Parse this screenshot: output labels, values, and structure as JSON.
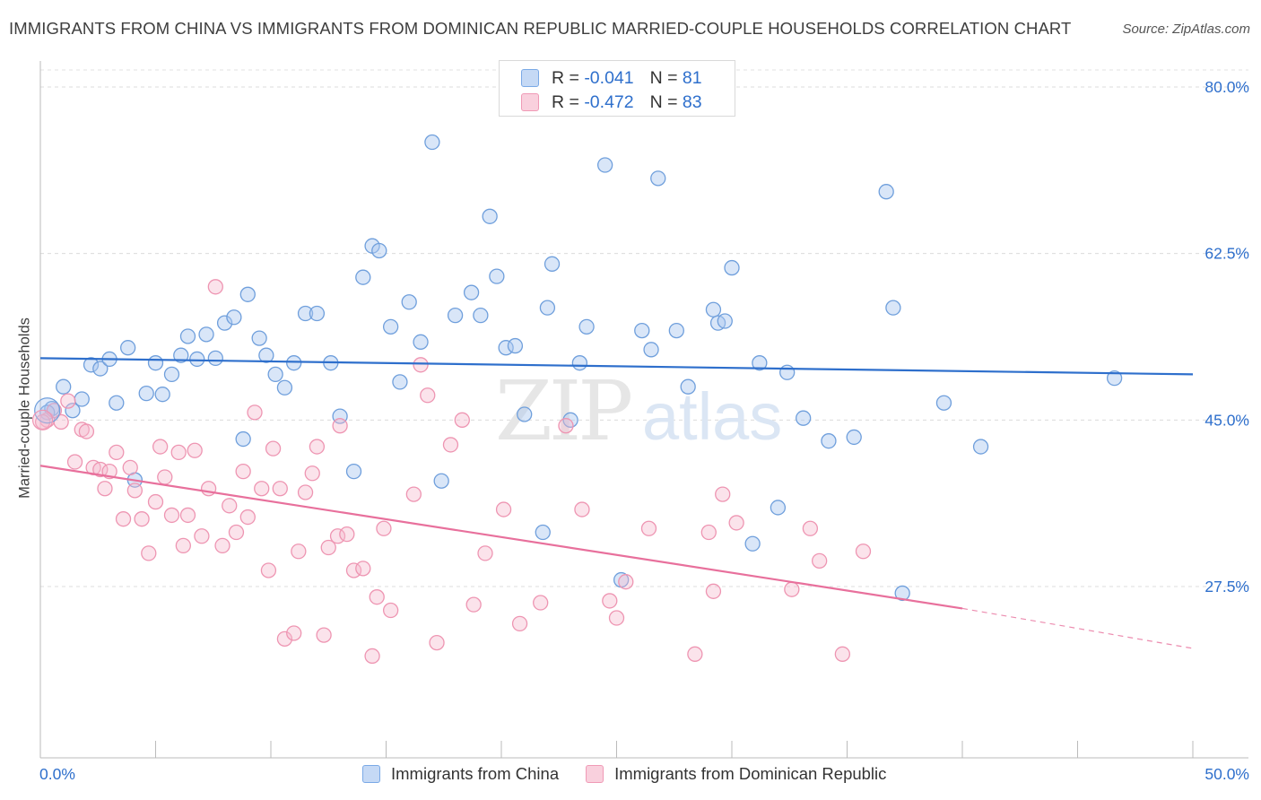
{
  "chart_data": {
    "type": "scatter",
    "title": "IMMIGRANTS FROM CHINA VS IMMIGRANTS FROM DOMINICAN REPUBLIC MARRIED-COUPLE HOUSEHOLDS CORRELATION CHART",
    "source": "Source: ZipAtlas.com",
    "xlabel": "",
    "ylabel": "Married-couple Households",
    "xlim": [
      0,
      50
    ],
    "ylim": [
      12,
      83
    ],
    "x_tick_labels": [
      "0.0%",
      "50.0%"
    ],
    "y_ticks": [
      27.5,
      45.0,
      62.5,
      80.0
    ],
    "y_tick_labels": [
      "27.5%",
      "45.0%",
      "62.5%",
      "80.0%"
    ],
    "watermark": "ZIPatlas",
    "legend": {
      "r_label": "R =",
      "n_label": "N =",
      "entries": [
        {
          "r": "-0.041",
          "n": "81",
          "color": "#7aa9e6",
          "fill": "#c5d9f5"
        },
        {
          "r": "-0.472",
          "n": "83",
          "color": "#f09ab6",
          "fill": "#f9d0dd"
        }
      ]
    },
    "series": [
      {
        "name": "Immigrants from China",
        "color": "#6f9fdc",
        "fill": "rgba(170,199,240,0.45)",
        "line_color": "#2e6fcc",
        "trend": {
          "x0": 0,
          "y0": 51.5,
          "x1": 50,
          "y1": 49.8
        },
        "points": [
          [
            0.5,
            46.2
          ],
          [
            1.0,
            48.5
          ],
          [
            1.4,
            46.0
          ],
          [
            1.8,
            47.2
          ],
          [
            2.2,
            50.8
          ],
          [
            2.6,
            50.4
          ],
          [
            3.0,
            51.4
          ],
          [
            3.3,
            46.8
          ],
          [
            3.8,
            52.6
          ],
          [
            4.1,
            38.7
          ],
          [
            4.6,
            47.8
          ],
          [
            5.0,
            51.0
          ],
          [
            5.3,
            47.7
          ],
          [
            5.7,
            49.8
          ],
          [
            6.1,
            51.8
          ],
          [
            6.4,
            53.8
          ],
          [
            6.8,
            51.4
          ],
          [
            7.2,
            54.0
          ],
          [
            7.6,
            51.5
          ],
          [
            8.0,
            55.2
          ],
          [
            8.4,
            55.8
          ],
          [
            8.8,
            43.0
          ],
          [
            9.0,
            58.2
          ],
          [
            9.5,
            53.6
          ],
          [
            9.8,
            51.8
          ],
          [
            10.2,
            49.8
          ],
          [
            10.6,
            48.4
          ],
          [
            11.0,
            51.0
          ],
          [
            11.5,
            56.2
          ],
          [
            12.0,
            56.2
          ],
          [
            12.6,
            51.0
          ],
          [
            13.0,
            45.4
          ],
          [
            13.6,
            39.6
          ],
          [
            14.0,
            60.0
          ],
          [
            14.4,
            63.3
          ],
          [
            14.7,
            62.8
          ],
          [
            15.2,
            54.8
          ],
          [
            15.6,
            49.0
          ],
          [
            16.0,
            57.4
          ],
          [
            16.5,
            53.2
          ],
          [
            17.0,
            74.2
          ],
          [
            17.4,
            38.6
          ],
          [
            18.0,
            56.0
          ],
          [
            18.7,
            58.4
          ],
          [
            19.1,
            56.0
          ],
          [
            19.5,
            66.4
          ],
          [
            19.8,
            60.1
          ],
          [
            20.2,
            52.6
          ],
          [
            20.6,
            52.8
          ],
          [
            21.0,
            45.6
          ],
          [
            21.8,
            33.2
          ],
          [
            22.2,
            61.4
          ],
          [
            22.0,
            56.8
          ],
          [
            23.0,
            45.0
          ],
          [
            23.4,
            51.0
          ],
          [
            23.7,
            54.8
          ],
          [
            24.5,
            71.8
          ],
          [
            25.2,
            28.2
          ],
          [
            26.1,
            54.4
          ],
          [
            26.5,
            52.4
          ],
          [
            26.8,
            70.4
          ],
          [
            27.6,
            54.4
          ],
          [
            28.1,
            48.5
          ],
          [
            29.2,
            56.6
          ],
          [
            29.4,
            55.2
          ],
          [
            29.7,
            55.4
          ],
          [
            30.0,
            61.0
          ],
          [
            30.9,
            32.0
          ],
          [
            31.2,
            51.0
          ],
          [
            32.0,
            35.8
          ],
          [
            32.4,
            50.0
          ],
          [
            33.1,
            45.2
          ],
          [
            34.2,
            42.8
          ],
          [
            35.3,
            43.2
          ],
          [
            36.7,
            69.0
          ],
          [
            37.0,
            56.8
          ],
          [
            37.4,
            26.8
          ],
          [
            39.2,
            46.8
          ],
          [
            40.8,
            42.2
          ],
          [
            46.6,
            49.4
          ],
          [
            0.3,
            45.8
          ]
        ]
      },
      {
        "name": "Immigrants from Dominican Republic",
        "color": "#ee95b2",
        "fill": "rgba(245,185,205,0.4)",
        "line_color": "#e8709c",
        "trend": {
          "x0": 0,
          "y0": 40.2,
          "x1": 40,
          "y1": 25.2
        },
        "trend_ext": {
          "x0": 40,
          "y0": 25.2,
          "x1": 50,
          "y1": 21.0
        },
        "points": [
          [
            0.3,
            45.0
          ],
          [
            0.6,
            46.0
          ],
          [
            0.9,
            44.8
          ],
          [
            1.2,
            47.0
          ],
          [
            1.5,
            40.6
          ],
          [
            1.8,
            44.0
          ],
          [
            2.0,
            43.8
          ],
          [
            2.3,
            40.0
          ],
          [
            2.6,
            39.8
          ],
          [
            2.8,
            37.8
          ],
          [
            3.0,
            39.6
          ],
          [
            3.3,
            41.6
          ],
          [
            3.6,
            34.6
          ],
          [
            3.9,
            40.0
          ],
          [
            4.1,
            37.6
          ],
          [
            4.4,
            34.6
          ],
          [
            4.7,
            31.0
          ],
          [
            5.0,
            36.4
          ],
          [
            5.2,
            42.2
          ],
          [
            5.4,
            39.0
          ],
          [
            5.7,
            35.0
          ],
          [
            6.0,
            41.6
          ],
          [
            6.2,
            31.8
          ],
          [
            6.4,
            35.0
          ],
          [
            6.7,
            41.8
          ],
          [
            7.0,
            32.8
          ],
          [
            7.3,
            37.8
          ],
          [
            7.6,
            59.0
          ],
          [
            7.9,
            31.8
          ],
          [
            8.2,
            36.0
          ],
          [
            8.5,
            33.2
          ],
          [
            8.8,
            39.6
          ],
          [
            9.0,
            34.8
          ],
          [
            9.3,
            45.8
          ],
          [
            9.6,
            37.8
          ],
          [
            9.9,
            29.2
          ],
          [
            10.1,
            42.0
          ],
          [
            10.4,
            37.8
          ],
          [
            10.6,
            22.0
          ],
          [
            11.0,
            22.6
          ],
          [
            11.2,
            31.2
          ],
          [
            11.5,
            37.4
          ],
          [
            11.8,
            39.4
          ],
          [
            12.0,
            42.2
          ],
          [
            12.3,
            22.4
          ],
          [
            12.5,
            31.6
          ],
          [
            12.9,
            32.8
          ],
          [
            13.0,
            44.4
          ],
          [
            13.3,
            33.0
          ],
          [
            13.6,
            29.2
          ],
          [
            14.0,
            29.4
          ],
          [
            14.4,
            20.2
          ],
          [
            14.6,
            26.4
          ],
          [
            14.9,
            33.6
          ],
          [
            15.2,
            25.0
          ],
          [
            16.2,
            37.2
          ],
          [
            16.5,
            50.8
          ],
          [
            16.8,
            47.6
          ],
          [
            17.2,
            21.6
          ],
          [
            17.8,
            42.4
          ],
          [
            18.3,
            45.0
          ],
          [
            18.8,
            25.6
          ],
          [
            19.3,
            31.0
          ],
          [
            20.1,
            35.6
          ],
          [
            20.8,
            23.6
          ],
          [
            21.7,
            25.8
          ],
          [
            22.8,
            44.4
          ],
          [
            23.5,
            35.6
          ],
          [
            24.7,
            26.0
          ],
          [
            25.0,
            24.2
          ],
          [
            25.4,
            28.0
          ],
          [
            26.4,
            33.6
          ],
          [
            28.4,
            20.4
          ],
          [
            29.0,
            33.2
          ],
          [
            29.2,
            27.0
          ],
          [
            29.6,
            37.2
          ],
          [
            30.2,
            34.2
          ],
          [
            32.6,
            27.2
          ],
          [
            33.4,
            33.6
          ],
          [
            33.8,
            30.2
          ],
          [
            34.8,
            20.4
          ],
          [
            35.7,
            31.2
          ],
          [
            0.1,
            44.8
          ]
        ]
      }
    ]
  },
  "bottom_legend": [
    "Immigrants from China",
    "Immigrants from Dominican Republic"
  ]
}
